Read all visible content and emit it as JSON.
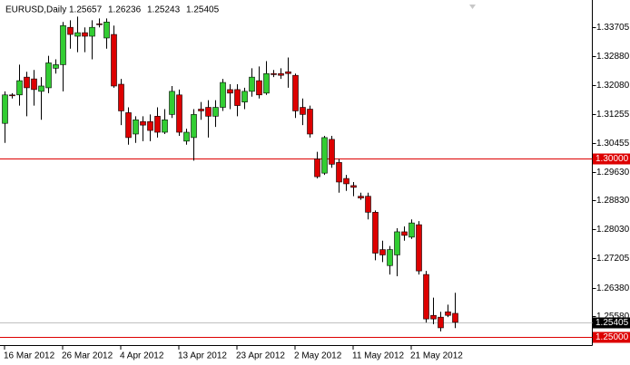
{
  "chart_data": {
    "type": "candlestick",
    "title": "EURUSD,Daily",
    "categories": [
      "16 Mar 2012",
      null,
      null,
      null,
      null,
      null,
      null,
      null,
      "26 Mar 2012",
      null,
      null,
      null,
      null,
      null,
      null,
      null,
      "4 Apr 2012",
      null,
      null,
      null,
      null,
      null,
      null,
      null,
      "13 Apr 2012",
      null,
      null,
      null,
      null,
      null,
      null,
      null,
      "23 Apr 2012",
      null,
      null,
      null,
      null,
      null,
      null,
      null,
      "2 May 2012",
      null,
      null,
      null,
      null,
      null,
      null,
      null,
      "11 May 2012",
      null,
      null,
      null,
      null,
      null,
      null,
      null,
      "21 May 2012",
      null,
      null,
      null,
      null,
      null,
      null
    ],
    "open": [
      1.31,
      1.318,
      1.318,
      1.323,
      1.3225,
      1.319,
      1.32,
      1.3255,
      1.3265,
      1.337,
      1.3345,
      1.3355,
      1.3345,
      1.338,
      1.334,
      1.335,
      1.321,
      1.313,
      1.307,
      1.3105,
      1.3105,
      1.312,
      1.3075,
      1.3125,
      1.318,
      1.305,
      1.306,
      1.314,
      1.3145,
      1.312,
      1.3145,
      1.3195,
      1.3195,
      1.316,
      1.319,
      1.322,
      1.3185,
      1.324,
      1.324,
      1.3245,
      1.3235,
      1.3145,
      1.314,
      1.3,
      1.296,
      1.3055,
      1.299,
      1.2945,
      1.2925,
      1.2895,
      1.2895,
      1.285,
      1.2745,
      1.27,
      1.273,
      1.2795,
      1.278,
      1.2815,
      1.2675,
      1.256,
      1.2555,
      1.257,
      1.25657
    ],
    "high": [
      1.319,
      1.3185,
      1.3265,
      1.3245,
      1.325,
      1.323,
      1.329,
      1.328,
      1.3385,
      1.339,
      1.34,
      1.337,
      1.339,
      1.3395,
      1.3395,
      1.3375,
      1.3225,
      1.3145,
      1.312,
      1.312,
      1.3125,
      1.3145,
      1.314,
      1.3205,
      1.3195,
      1.3085,
      1.314,
      1.316,
      1.3165,
      1.3165,
      1.3225,
      1.321,
      1.321,
      1.32,
      1.3255,
      1.326,
      1.3275,
      1.325,
      1.3255,
      1.3285,
      1.324,
      1.317,
      1.315,
      1.302,
      1.3065,
      1.3065,
      1.3,
      1.2955,
      1.2935,
      1.2905,
      1.2905,
      1.2855,
      1.277,
      1.2755,
      1.2805,
      1.281,
      1.283,
      1.2825,
      1.2685,
      1.261,
      1.257,
      1.259,
      1.26236
    ],
    "low": [
      1.3045,
      1.317,
      1.315,
      1.312,
      1.315,
      1.311,
      1.3185,
      1.324,
      1.319,
      1.331,
      1.33,
      1.33,
      1.328,
      1.337,
      1.331,
      1.32,
      1.3095,
      1.304,
      1.3045,
      1.305,
      1.305,
      1.306,
      1.307,
      1.3115,
      1.3065,
      1.304,
      1.2995,
      1.311,
      1.306,
      1.309,
      1.3135,
      1.314,
      1.312,
      1.314,
      1.3175,
      1.317,
      1.318,
      1.323,
      1.3225,
      1.32,
      1.3115,
      1.3095,
      1.306,
      1.2945,
      1.2955,
      1.2975,
      1.2905,
      1.291,
      1.2895,
      1.2885,
      1.283,
      1.2715,
      1.271,
      1.2675,
      1.267,
      1.277,
      1.2775,
      1.2675,
      1.254,
      1.2535,
      1.2515,
      1.2555,
      1.25243
    ],
    "close": [
      1.318,
      1.3178,
      1.322,
      1.32,
      1.3195,
      1.3205,
      1.327,
      1.3265,
      1.3375,
      1.335,
      1.3355,
      1.3345,
      1.337,
      1.3378,
      1.3385,
      1.3205,
      1.3135,
      1.306,
      1.311,
      1.3095,
      1.308,
      1.3075,
      1.311,
      1.319,
      1.3075,
      1.3075,
      1.3125,
      1.3135,
      1.312,
      1.3145,
      1.3215,
      1.3185,
      1.315,
      1.319,
      1.323,
      1.318,
      1.324,
      1.3237,
      1.3235,
      1.324,
      1.3135,
      1.3125,
      1.307,
      1.295,
      1.306,
      1.2985,
      1.2935,
      1.293,
      1.292,
      1.289,
      1.285,
      1.2735,
      1.273,
      1.2745,
      1.2795,
      1.2785,
      1.282,
      1.2685,
      1.255,
      1.255,
      1.2525,
      1.256,
      1.25405
    ],
    "up_color": "#32cd32",
    "down_color": "#dd0000",
    "ylim": [
      1.24765,
      1.34367
    ],
    "yticks": [
      1.33705,
      {
        "value": 1.3288,
        "label": "1.32880"
      },
      {
        "value": 1.3208,
        "label": "1.32080"
      },
      1.31255,
      1.30455,
      {
        "value": 1.2963,
        "label": "1.29630"
      },
      {
        "value": 1.2883,
        "label": "1.28830"
      },
      {
        "value": 1.2803,
        "label": "1.28030"
      },
      1.27205,
      {
        "value": 1.2638,
        "label": "1.26380"
      },
      {
        "value": 1.2558,
        "label": "1.25580"
      }
    ],
    "levels": [
      {
        "value": 1.3,
        "label": "1.30000",
        "color": "#dd0000"
      },
      {
        "value": 1.25,
        "label": "1.25000",
        "color": "#dd0000"
      },
      {
        "value": 1.25405,
        "label": "1.25405",
        "color": "#000000"
      }
    ],
    "grid": false
  }
}
